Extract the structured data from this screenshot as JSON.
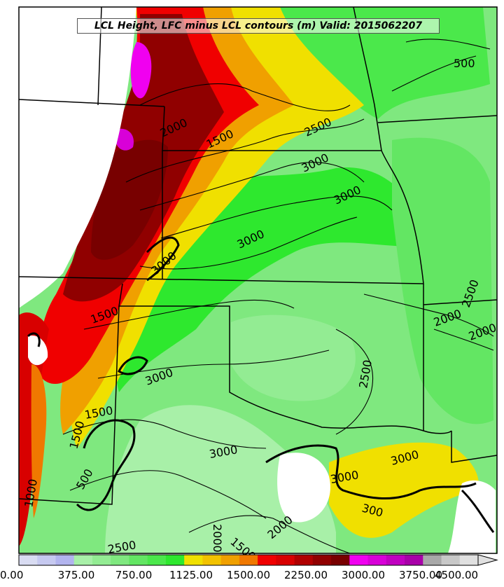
{
  "title": "LCL Height, LFC minus LCL contours (m) Valid: 2015062207",
  "colorbar": {
    "tick_labels": [
      "0.00",
      "375.00",
      "750.00",
      "1125.00",
      "1500.00",
      "2250.00",
      "3000.00",
      "3750.00",
      "4500.00"
    ],
    "colors": [
      "#d9dcf2",
      "#c6c9f0",
      "#b2b4ee",
      "#a8f0a8",
      "#93ec93",
      "#7fe87f",
      "#63e663",
      "#4be84b",
      "#2ee82e",
      "#f0e000",
      "#f2c200",
      "#f0a000",
      "#f07800",
      "#f00000",
      "#d80000",
      "#b00000",
      "#900000",
      "#780000",
      "#f000f0",
      "#d800d8",
      "#c000c0",
      "#a800a8",
      "#a8a8a8",
      "#c8c8c8",
      "#e0e0e0"
    ]
  },
  "contour_labels": [
    "500",
    "1000",
    "1500",
    "2000",
    "2500",
    "3000",
    "3000",
    "3000",
    "3000",
    "2500",
    "2000",
    "2000",
    "2500",
    "1500",
    "2000",
    "3000",
    "1500",
    "3000",
    "1500",
    "3000",
    "3000",
    "2500",
    "2000",
    "1500",
    "500",
    "300"
  ],
  "legend_colors": {
    "white": "#ffffff",
    "outline": "#000000"
  }
}
